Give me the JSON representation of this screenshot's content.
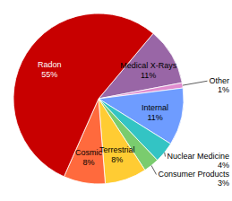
{
  "chart_data": {
    "type": "pie",
    "categories": [
      "Medical X-Rays",
      "Other",
      "Internal",
      "Nuclear Medicine",
      "Consumer Products",
      "Terrestrial",
      "Cosmic",
      "Radon"
    ],
    "values": [
      11,
      1,
      11,
      4,
      3,
      8,
      8,
      55
    ],
    "value_labels": [
      "11%",
      "1%",
      "11%",
      "4%",
      "3%",
      "8%",
      "8%",
      "55%"
    ],
    "colors": [
      "#9966a6",
      "#e08ccf",
      "#6e9cff",
      "#33c4c4",
      "#7acc6e",
      "#ffcc33",
      "#ff6a3d",
      "#c80000"
    ],
    "data_labels": true
  }
}
